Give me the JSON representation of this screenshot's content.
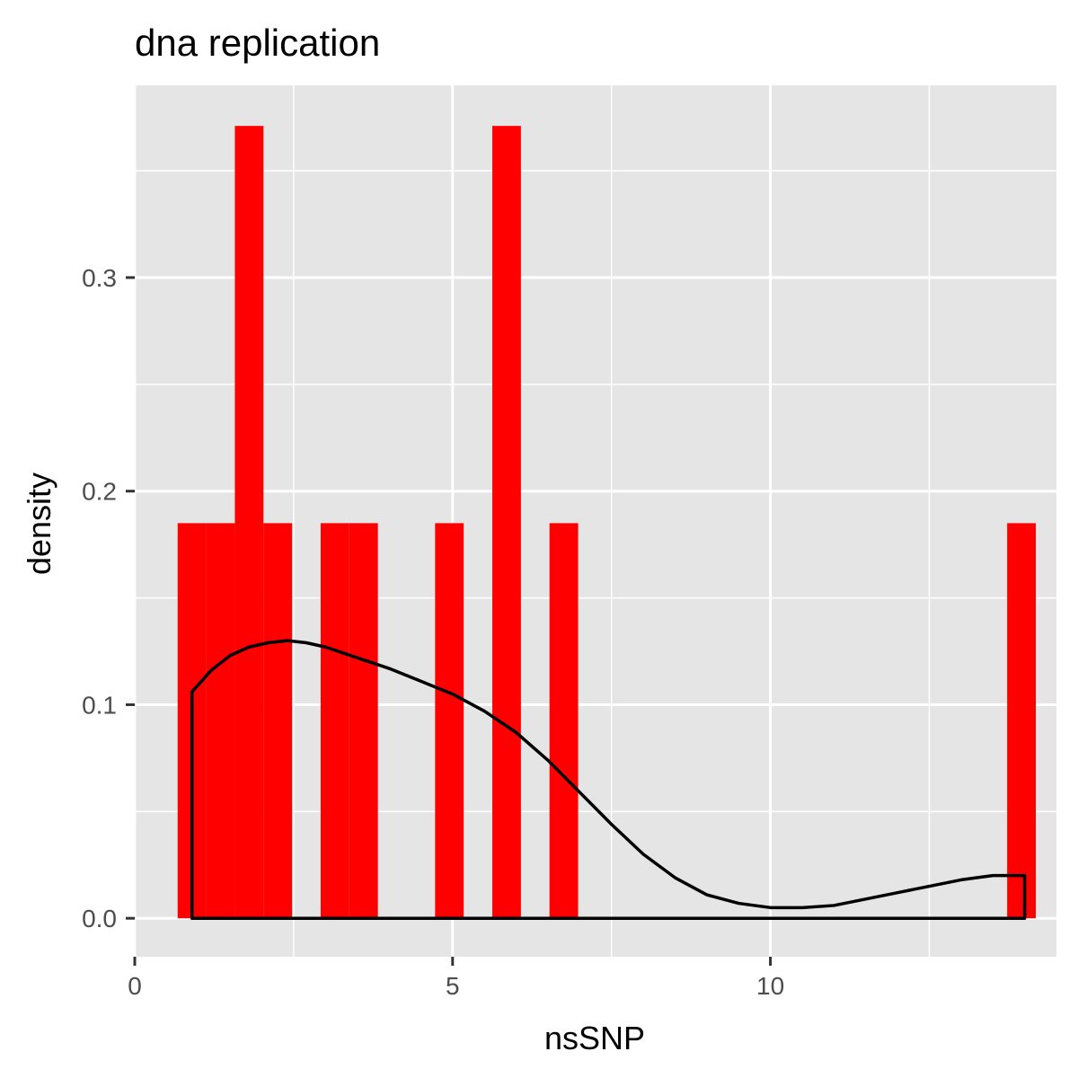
{
  "chart_data": {
    "type": "histogram",
    "title": "dna replication",
    "xlabel": "nsSNP",
    "ylabel": "density",
    "xlim": [
      0,
      14.5
    ],
    "ylim": [
      -0.018,
      0.39
    ],
    "x_ticks": [
      {
        "value": 0,
        "label": "0"
      },
      {
        "value": 5,
        "label": "5"
      },
      {
        "value": 10,
        "label": "10"
      }
    ],
    "y_ticks": [
      {
        "value": 0.0,
        "label": "0.0"
      },
      {
        "value": 0.1,
        "label": "0.1"
      },
      {
        "value": 0.2,
        "label": "0.2"
      },
      {
        "value": 0.3,
        "label": "0.3"
      }
    ],
    "bin_width": 0.45,
    "bars": [
      {
        "center": 0.9,
        "density": 0.185
      },
      {
        "center": 1.35,
        "density": 0.185
      },
      {
        "center": 1.8,
        "density": 0.371
      },
      {
        "center": 2.25,
        "density": 0.185
      },
      {
        "center": 3.15,
        "density": 0.185
      },
      {
        "center": 3.6,
        "density": 0.185
      },
      {
        "center": 4.95,
        "density": 0.185
      },
      {
        "center": 5.85,
        "density": 0.371
      },
      {
        "center": 6.75,
        "density": 0.185
      },
      {
        "center": 13.95,
        "density": 0.185
      }
    ],
    "density_curve": {
      "x": [
        0.9,
        1.2,
        1.5,
        1.8,
        2.1,
        2.4,
        2.7,
        3.0,
        3.5,
        4.0,
        4.5,
        5.0,
        5.5,
        6.0,
        6.5,
        7.0,
        7.5,
        8.0,
        8.5,
        9.0,
        9.5,
        10.0,
        10.5,
        11.0,
        11.5,
        12.0,
        12.5,
        13.0,
        13.5,
        14.0
      ],
      "y": [
        0.106,
        0.116,
        0.123,
        0.127,
        0.129,
        0.13,
        0.129,
        0.127,
        0.122,
        0.117,
        0.111,
        0.105,
        0.097,
        0.087,
        0.074,
        0.059,
        0.044,
        0.03,
        0.019,
        0.011,
        0.007,
        0.005,
        0.005,
        0.006,
        0.009,
        0.012,
        0.015,
        0.018,
        0.02,
        0.02
      ]
    },
    "grid": true,
    "colors": {
      "bar_fill": "#ff0000",
      "curve": "#000000",
      "panel": "#e5e5e5",
      "grid": "#ffffff"
    }
  }
}
